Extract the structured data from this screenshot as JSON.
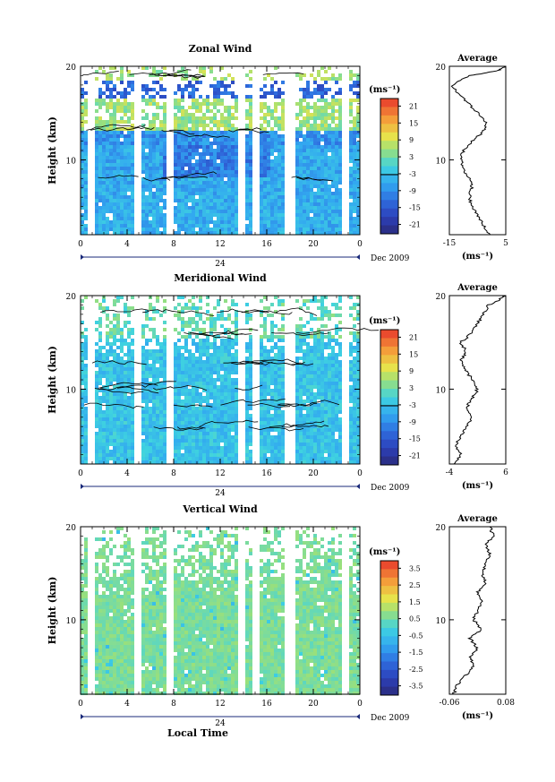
{
  "chart_data": [
    {
      "type": "heatmap",
      "title": "Zonal Wind",
      "ylabel": "Height (km)",
      "ylim": [
        2,
        20
      ],
      "yticks": [
        "10",
        "20"
      ],
      "xticks": [
        "0",
        "4",
        "8",
        "12",
        "16",
        "20",
        "0"
      ],
      "date_center_label": "24",
      "date_label": "Dec 2009",
      "colorbar_unit_label": "(ms⁻¹)",
      "colorbar_ticks": [
        "21",
        "15",
        "9",
        "3",
        "-3",
        "-9",
        "-15",
        "-21"
      ],
      "colorbar_range": [
        -24,
        24
      ],
      "profile": {
        "title": "Average",
        "xticks": [
          "-15",
          "5"
        ],
        "xlim": [
          -15,
          5
        ],
        "yticks": [
          "10",
          "20"
        ],
        "xlabel": "(ms⁻¹)",
        "values": [
          {
            "h": 2.0,
            "v": -1
          },
          {
            "h": 3.0,
            "v": -3
          },
          {
            "h": 4.0,
            "v": -5
          },
          {
            "h": 5.0,
            "v": -7
          },
          {
            "h": 6.0,
            "v": -8
          },
          {
            "h": 7.0,
            "v": -7
          },
          {
            "h": 8.0,
            "v": -8
          },
          {
            "h": 9.0,
            "v": -10
          },
          {
            "h": 10.0,
            "v": -11
          },
          {
            "h": 11.0,
            "v": -10
          },
          {
            "h": 12.0,
            "v": -7
          },
          {
            "h": 13.0,
            "v": -3
          },
          {
            "h": 14.0,
            "v": -2
          },
          {
            "h": 15.0,
            "v": -5
          },
          {
            "h": 16.0,
            "v": -8
          },
          {
            "h": 17.0,
            "v": -12
          },
          {
            "h": 18.0,
            "v": -14
          },
          {
            "h": 19.0,
            "v": -8
          },
          {
            "h": 19.5,
            "v": 2
          },
          {
            "h": 20.0,
            "v": 5
          }
        ]
      }
    },
    {
      "type": "heatmap",
      "title": "Meridional Wind",
      "ylabel": "Height (km)",
      "ylim": [
        2,
        20
      ],
      "yticks": [
        "10",
        "20"
      ],
      "xticks": [
        "0",
        "4",
        "8",
        "12",
        "16",
        "20",
        "0"
      ],
      "date_center_label": "24",
      "date_label": "Dec 2009",
      "colorbar_unit_label": "(ms⁻¹)",
      "colorbar_ticks": [
        "21",
        "15",
        "9",
        "3",
        "-3",
        "-9",
        "-15",
        "-21"
      ],
      "colorbar_range": [
        -24,
        24
      ],
      "profile": {
        "title": "Average",
        "xticks": [
          "-4",
          "6"
        ],
        "xlim": [
          -4,
          6
        ],
        "yticks": [
          "10",
          "20"
        ],
        "xlabel": "(ms⁻¹)",
        "values": [
          {
            "h": 2.0,
            "v": -3
          },
          {
            "h": 3.0,
            "v": -2
          },
          {
            "h": 4.0,
            "v": -3
          },
          {
            "h": 5.0,
            "v": -2
          },
          {
            "h": 6.0,
            "v": -1
          },
          {
            "h": 7.0,
            "v": 0
          },
          {
            "h": 8.0,
            "v": -1
          },
          {
            "h": 9.0,
            "v": 0
          },
          {
            "h": 10.0,
            "v": 1
          },
          {
            "h": 11.0,
            "v": 0
          },
          {
            "h": 12.0,
            "v": -1
          },
          {
            "h": 13.0,
            "v": -2
          },
          {
            "h": 14.0,
            "v": -1
          },
          {
            "h": 15.0,
            "v": -2
          },
          {
            "h": 16.0,
            "v": 0
          },
          {
            "h": 17.0,
            "v": 1
          },
          {
            "h": 18.0,
            "v": 2
          },
          {
            "h": 19.0,
            "v": 3
          },
          {
            "h": 19.6,
            "v": 5
          },
          {
            "h": 20.0,
            "v": 6
          }
        ]
      }
    },
    {
      "type": "heatmap",
      "title": "Vertical Wind",
      "ylabel": "Height (km)",
      "xlabel": "Local Time",
      "ylim": [
        2,
        20
      ],
      "yticks": [
        "10",
        "20"
      ],
      "xticks": [
        "0",
        "4",
        "8",
        "12",
        "16",
        "20",
        "0"
      ],
      "date_center_label": "24",
      "date_label": "Dec 2009",
      "colorbar_unit_label": "(ms⁻¹)",
      "colorbar_ticks": [
        "3.5",
        "2.5",
        "1.5",
        "0.5",
        "-0.5",
        "-1.5",
        "-2.5",
        "-3.5"
      ],
      "colorbar_range": [
        -4,
        4
      ],
      "profile": {
        "title": "Average",
        "xticks": [
          "-0.06",
          "0.08"
        ],
        "xlim": [
          -0.06,
          0.08
        ],
        "yticks": [
          "10",
          "20"
        ],
        "xlabel": "(ms⁻¹)",
        "values": [
          {
            "h": 2.0,
            "v": -0.05
          },
          {
            "h": 3.0,
            "v": -0.04
          },
          {
            "h": 4.0,
            "v": -0.02
          },
          {
            "h": 5.0,
            "v": 0.0
          },
          {
            "h": 6.0,
            "v": -0.01
          },
          {
            "h": 7.0,
            "v": 0.01
          },
          {
            "h": 8.0,
            "v": -0.01
          },
          {
            "h": 9.0,
            "v": 0.02
          },
          {
            "h": 10.0,
            "v": 0.0
          },
          {
            "h": 11.0,
            "v": 0.01
          },
          {
            "h": 12.0,
            "v": 0.02
          },
          {
            "h": 13.0,
            "v": 0.01
          },
          {
            "h": 14.0,
            "v": 0.03
          },
          {
            "h": 15.0,
            "v": 0.02
          },
          {
            "h": 16.0,
            "v": 0.03
          },
          {
            "h": 17.0,
            "v": 0.04
          },
          {
            "h": 18.0,
            "v": 0.03
          },
          {
            "h": 19.0,
            "v": 0.05
          },
          {
            "h": 20.0,
            "v": 0.04
          }
        ]
      }
    }
  ]
}
